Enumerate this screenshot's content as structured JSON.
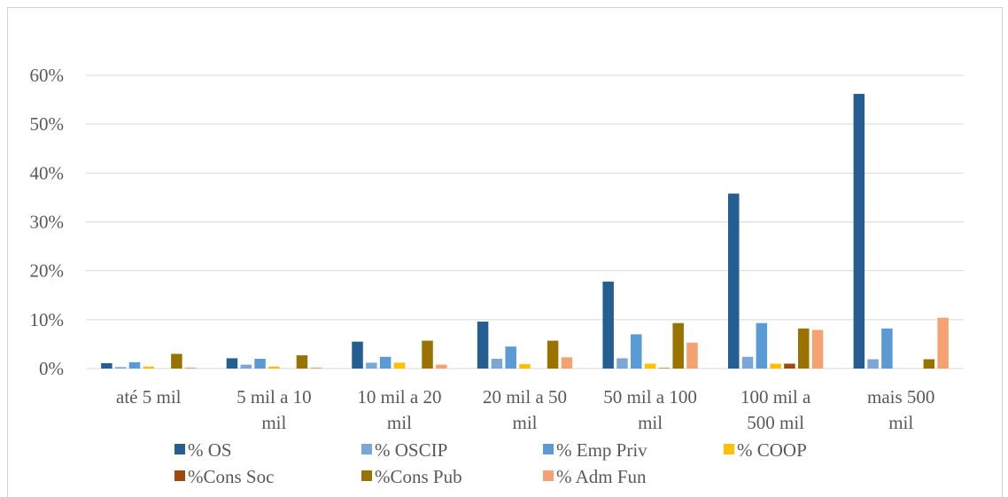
{
  "chart_data": {
    "type": "bar",
    "title": "",
    "xlabel": "",
    "ylabel": "",
    "ylim": [
      0,
      0.6
    ],
    "yticks": [
      "0%",
      "10%",
      "20%",
      "30%",
      "40%",
      "50%",
      "60%"
    ],
    "grid": true,
    "legend_position": "bottom",
    "categories": [
      [
        "até 5 mil"
      ],
      [
        "5 mil a 10",
        "mil"
      ],
      [
        "10 mil a 20",
        "mil"
      ],
      [
        "20 mil a 50",
        "mil"
      ],
      [
        "50 mil a 100",
        "mil"
      ],
      [
        "100 mil a",
        "500 mil"
      ],
      [
        "mais 500",
        "mil"
      ]
    ],
    "series": [
      {
        "name": "% OS",
        "color": "#255E91",
        "values": [
          0.011,
          0.021,
          0.055,
          0.096,
          0.178,
          0.358,
          0.562
        ]
      },
      {
        "name": "% OSCIP",
        "color": "#7BA7D6",
        "values": [
          0.003,
          0.008,
          0.012,
          0.02,
          0.021,
          0.024,
          0.019
        ]
      },
      {
        "name": "% Emp Priv",
        "color": "#5B9BD5",
        "values": [
          0.013,
          0.02,
          0.024,
          0.045,
          0.07,
          0.093,
          0.082
        ]
      },
      {
        "name": "% COOP",
        "color": "#FFC000",
        "values": [
          0.004,
          0.004,
          0.012,
          0.009,
          0.01,
          0.01,
          0.0
        ]
      },
      {
        "name": "%Cons Soc",
        "color": "#9E480E",
        "values": [
          0.0,
          0.0,
          0.0,
          0.0,
          0.001,
          0.01,
          0.0
        ]
      },
      {
        "name": "%Cons Pub",
        "color": "#997300",
        "values": [
          0.03,
          0.027,
          0.057,
          0.057,
          0.093,
          0.082,
          0.019
        ]
      },
      {
        "name": "% Adm Fun",
        "color": "#F4A272",
        "values": [
          0.002,
          0.002,
          0.008,
          0.023,
          0.053,
          0.079,
          0.104
        ]
      }
    ]
  }
}
